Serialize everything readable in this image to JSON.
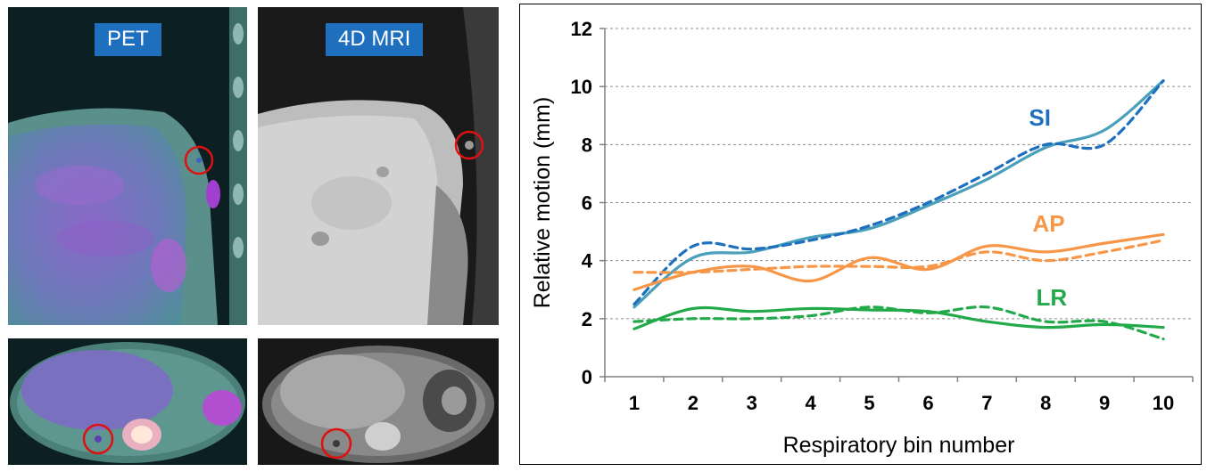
{
  "images": {
    "pet_label": "PET",
    "mri_label": "4D MRI"
  },
  "chart_data": {
    "type": "line",
    "title": "",
    "xlabel": "Respiratory bin number",
    "ylabel": "Relative motion (mm)",
    "x": [
      1,
      2,
      3,
      4,
      5,
      6,
      7,
      8,
      9,
      10
    ],
    "ylim": [
      0,
      12
    ],
    "yticks": [
      0,
      2,
      4,
      6,
      8,
      10,
      12
    ],
    "grid": true,
    "series": [
      {
        "name": "SI",
        "style": "solid",
        "color": "#4aa0bb",
        "values": [
          2.4,
          4.1,
          4.3,
          4.8,
          5.1,
          5.9,
          6.8,
          7.9,
          8.5,
          10.2
        ]
      },
      {
        "name": "SI",
        "style": "dashed",
        "color": "#1f6fbf",
        "values": [
          2.5,
          4.5,
          4.4,
          4.7,
          5.2,
          6.0,
          7.0,
          8.0,
          8.0,
          10.2
        ]
      },
      {
        "name": "AP",
        "style": "solid",
        "color": "#f79646",
        "values": [
          3.0,
          3.6,
          3.8,
          3.3,
          4.1,
          3.7,
          4.5,
          4.3,
          4.6,
          4.9
        ]
      },
      {
        "name": "AP",
        "style": "dashed",
        "color": "#f79646",
        "values": [
          3.6,
          3.6,
          3.7,
          3.8,
          3.8,
          3.8,
          4.3,
          4.0,
          4.3,
          4.7
        ]
      },
      {
        "name": "LR",
        "style": "solid",
        "color": "#22a94a",
        "values": [
          1.65,
          2.35,
          2.25,
          2.35,
          2.3,
          2.25,
          1.9,
          1.7,
          1.8,
          1.7
        ]
      },
      {
        "name": "LR",
        "style": "dashed",
        "color": "#22a94a",
        "values": [
          1.9,
          2.0,
          2.0,
          2.1,
          2.4,
          2.2,
          2.4,
          1.9,
          1.9,
          1.3
        ]
      }
    ],
    "series_labels": [
      {
        "text": "SI",
        "color": "#1f6fbf",
        "x": 7.9,
        "y": 8.65
      },
      {
        "text": "AP",
        "color": "#f79646",
        "x": 8.05,
        "y": 5.0
      },
      {
        "text": "LR",
        "color": "#22a94a",
        "x": 8.1,
        "y": 2.45
      }
    ]
  }
}
